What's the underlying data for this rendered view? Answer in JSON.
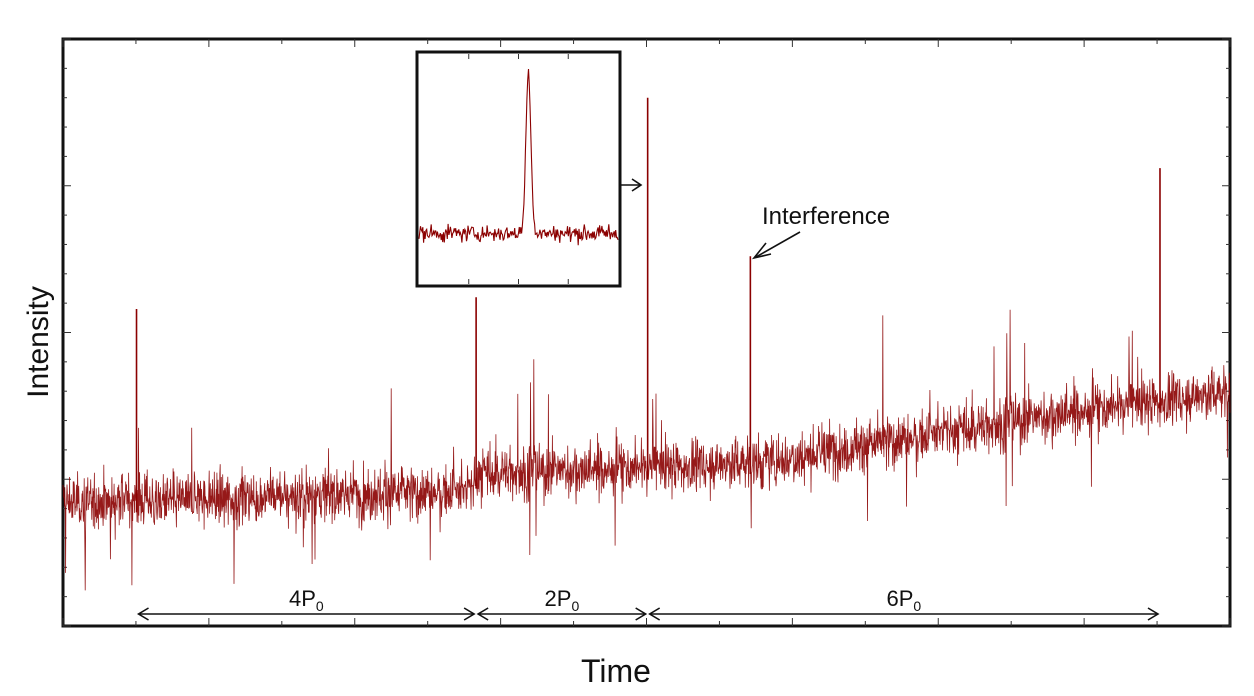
{
  "colors": {
    "signal": "#8b0000",
    "frame": "#111111",
    "background": "#ffffff"
  },
  "chart_data": {
    "type": "line",
    "xlabel": "Time",
    "ylabel": "Intensity",
    "title": "",
    "x_range": [
      0,
      1
    ],
    "y_range": [
      0,
      1
    ],
    "ticks_labeled": false,
    "grid": false,
    "legend": "none",
    "series": [
      {
        "description_points": "noisy baseline with rising trend and periodic spikes",
        "baseline_trend": [
          {
            "x": 0.0,
            "y": 0.21
          },
          {
            "x": 0.35,
            "y": 0.23
          },
          {
            "x": 0.355,
            "y": 0.26
          },
          {
            "x": 0.5,
            "y": 0.27
          },
          {
            "x": 0.6,
            "y": 0.28
          },
          {
            "x": 0.85,
            "y": 0.36
          },
          {
            "x": 1.0,
            "y": 0.4
          }
        ],
        "noise_amplitude": 0.07,
        "spikes": [
          {
            "x": 0.063,
            "y": 0.54
          },
          {
            "x": 0.354,
            "y": 0.56
          },
          {
            "x": 0.501,
            "y": 0.9
          },
          {
            "x": 0.589,
            "y": 0.63
          },
          {
            "x": 0.94,
            "y": 0.78
          }
        ]
      }
    ],
    "annotations": {
      "interference_label": "Interference",
      "period_labels": [
        {
          "main": "4P",
          "sub": "0",
          "x_start": 0.063,
          "x_end": 0.354
        },
        {
          "main": "2P",
          "sub": "0",
          "x_start": 0.354,
          "x_end": 0.501
        },
        {
          "main": "6P",
          "sub": "0",
          "x_start": 0.501,
          "x_end": 0.94
        }
      ]
    },
    "inset": {
      "description": "zoomed view of the pulse at x = 0.501",
      "pulse_peak": 0.92,
      "baseline": 0.22,
      "noise_amplitude": 0.06
    }
  }
}
